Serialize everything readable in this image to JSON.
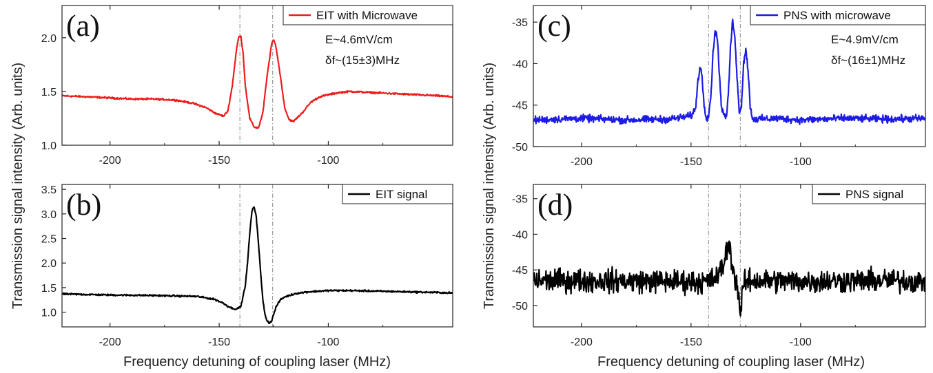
{
  "chart_data": [
    {
      "panel": "(a)",
      "type": "line",
      "ylabel": "Transmission signal intensity (Arb. units)",
      "xlim": [
        -222,
        -43
      ],
      "ylim": [
        1.0,
        2.3
      ],
      "xticks": [
        -200,
        -150,
        -100
      ],
      "yticks": [
        1.0,
        1.5,
        2.0
      ],
      "ytick_labels": [
        "1.0",
        "1.5",
        "2.0"
      ],
      "legend": "top-right",
      "annotations": [
        "E~4.6mV/cm",
        "δf~(15±3)MHz"
      ],
      "vlines": [
        -140.5,
        -125.5
      ],
      "series": [
        {
          "name": "EIT with Microwave",
          "color": "#ee1c1c",
          "noise": 0.012,
          "x": [
            -222,
            -210,
            -200,
            -190,
            -180,
            -170,
            -162,
            -156,
            -152,
            -148,
            -146,
            -144,
            -142,
            -141,
            -140,
            -139,
            -138,
            -136,
            -134,
            -132,
            -130,
            -128,
            -126,
            -125,
            -124,
            -122,
            -120,
            -118,
            -116,
            -112,
            -108,
            -104,
            -100,
            -95,
            -90,
            -80,
            -70,
            -60,
            -50,
            -43
          ],
          "y": [
            1.46,
            1.45,
            1.44,
            1.43,
            1.43,
            1.42,
            1.39,
            1.35,
            1.3,
            1.27,
            1.32,
            1.55,
            1.9,
            2.01,
            2.01,
            1.85,
            1.55,
            1.25,
            1.17,
            1.16,
            1.3,
            1.65,
            1.94,
            1.98,
            1.92,
            1.65,
            1.35,
            1.24,
            1.22,
            1.3,
            1.4,
            1.45,
            1.47,
            1.49,
            1.5,
            1.49,
            1.48,
            1.47,
            1.46,
            1.45
          ]
        }
      ]
    },
    {
      "panel": "(b)",
      "type": "line",
      "xlabel": "Frequency detuning of coupling laser (MHz)",
      "xlim": [
        -222,
        -43
      ],
      "ylim": [
        0.7,
        3.6
      ],
      "xticks": [
        -200,
        -150,
        -100
      ],
      "yticks": [
        1.0,
        1.5,
        2.0,
        2.5,
        3.0,
        3.5
      ],
      "ytick_labels": [
        "1.0",
        "1.5",
        "2.0",
        "2.5",
        "3.0",
        "3.5"
      ],
      "legend": "top-right",
      "vlines": [
        -140.5,
        -125.5
      ],
      "series": [
        {
          "name": "EIT signal",
          "color": "#000000",
          "noise": 0.025,
          "x": [
            -222,
            -200,
            -180,
            -160,
            -152,
            -148,
            -146,
            -144,
            -142,
            -140,
            -138,
            -137,
            -136,
            -135,
            -134,
            -133,
            -132,
            -131,
            -130,
            -129,
            -128,
            -127,
            -126,
            -124,
            -122,
            -120,
            -115,
            -110,
            -100,
            -90,
            -70,
            -50,
            -43
          ],
          "y": [
            1.37,
            1.35,
            1.34,
            1.32,
            1.26,
            1.18,
            1.12,
            1.08,
            1.06,
            1.12,
            1.55,
            2.0,
            2.6,
            3.05,
            3.15,
            2.95,
            2.4,
            1.8,
            1.25,
            0.95,
            0.82,
            0.78,
            0.82,
            1.1,
            1.25,
            1.31,
            1.38,
            1.41,
            1.44,
            1.44,
            1.42,
            1.4,
            1.39
          ]
        }
      ]
    },
    {
      "panel": "(c)",
      "type": "line",
      "xlim": [
        -222,
        -43
      ],
      "ylim": [
        -50,
        -33
      ],
      "xticks": [
        -200,
        -150,
        -100
      ],
      "yticks": [
        -50,
        -45,
        -40,
        -35
      ],
      "ytick_labels": [
        "-50",
        "-45",
        "-40",
        "-35"
      ],
      "legend": "top-right",
      "annotations": [
        "E~4.9mV/cm",
        "δf~(16±1)MHz"
      ],
      "vlines": [
        -142,
        -127.5
      ],
      "series": [
        {
          "name": "PNS with microwave",
          "color": "#1c1ce6",
          "noise": 0.65,
          "x": [
            -222,
            -200,
            -180,
            -160,
            -150,
            -148,
            -147,
            -146,
            -145,
            -144,
            -143,
            -142,
            -141,
            -140,
            -139,
            -138,
            -137,
            -136,
            -134,
            -133,
            -132,
            -131,
            -130,
            -129,
            -128,
            -127,
            -126,
            -125,
            -124,
            -123,
            -122,
            -120,
            -110,
            -100,
            -80,
            -60,
            -43
          ],
          "y": [
            -46.8,
            -46.6,
            -46.8,
            -46.7,
            -46.3,
            -45.5,
            -42.5,
            -40.3,
            -41.5,
            -45.0,
            -46.5,
            -46.3,
            -44.0,
            -39.0,
            -35.8,
            -37.0,
            -41.5,
            -45.5,
            -46.6,
            -44.0,
            -38.0,
            -34.9,
            -36.5,
            -41.8,
            -45.8,
            -45.0,
            -40.0,
            -38.1,
            -40.8,
            -45.0,
            -46.6,
            -46.7,
            -46.6,
            -46.8,
            -46.6,
            -46.7,
            -46.6
          ]
        }
      ]
    },
    {
      "panel": "(d)",
      "type": "line",
      "xlabel": "Frequency detuning of coupling laser (MHz)",
      "xlim": [
        -222,
        -43
      ],
      "ylim": [
        -53,
        -33
      ],
      "xticks": [
        -200,
        -150,
        -100
      ],
      "yticks": [
        -50,
        -45,
        -40,
        -35
      ],
      "ytick_labels": [
        "-50",
        "-45",
        "-40",
        "-35"
      ],
      "legend": "top-right",
      "vlines": [
        -142,
        -127.5
      ],
      "series": [
        {
          "name": "PNS signal",
          "color": "#000000",
          "noise": 2.4,
          "x": [
            -222,
            -200,
            -160,
            -145,
            -140,
            -137,
            -135,
            -134,
            -133,
            -132,
            -131,
            -130,
            -129,
            -128,
            -127.5,
            -127,
            -126,
            -124,
            -120,
            -100,
            -60,
            -43
          ],
          "y": [
            -46.5,
            -46.5,
            -46.6,
            -46.7,
            -46.4,
            -45.5,
            -44.0,
            -42.5,
            -41.5,
            -42.5,
            -44.5,
            -46.0,
            -47.0,
            -49.0,
            -52.0,
            -49.5,
            -47.0,
            -46.6,
            -46.5,
            -46.6,
            -46.5,
            -46.6
          ]
        }
      ]
    }
  ],
  "ui": {
    "left_ylabel": "Transmission signal intensity (Arb. units)",
    "right_ylabel": "Transmission signal intensity (Arb. units)",
    "left_xlabel": "Frequency detuning of coupling laser (MHz)",
    "right_xlabel": "Frequency detuning of coupling laser (MHz)"
  }
}
